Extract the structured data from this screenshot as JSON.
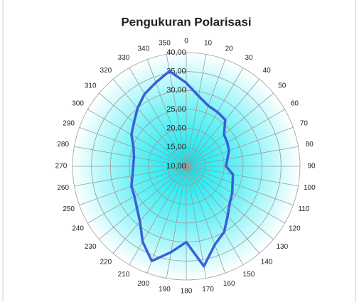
{
  "chart_data": {
    "type": "radar",
    "title": "Pengukuran Polarisasi",
    "categories": [
      "0",
      "10",
      "20",
      "30",
      "40",
      "50",
      "60",
      "70",
      "80",
      "90",
      "100",
      "110",
      "120",
      "130",
      "140",
      "150",
      "160",
      "170",
      "180",
      "190",
      "200",
      "210",
      "220",
      "230",
      "240",
      "250",
      "260",
      "270",
      "280",
      "290",
      "300",
      "310",
      "320",
      "330",
      "340",
      "350"
    ],
    "series": [
      {
        "name": "Polarisasi",
        "color": "#3a5fd8",
        "values": [
          32,
          28.8,
          27,
          26.5,
          26,
          23,
          22.5,
          22,
          21,
          20.5,
          22.5,
          23,
          24,
          25,
          27,
          30,
          32,
          36.8,
          30,
          33,
          36.6,
          33,
          29,
          27,
          25.8,
          25.4,
          24.4,
          24,
          24,
          24.8,
          26.7,
          28,
          30,
          32,
          33.5,
          35.5
        ]
      }
    ],
    "ylim": [
      10,
      40
    ],
    "yticks": [
      {
        "value": 10,
        "label": "10,00"
      },
      {
        "value": 15,
        "label": "15,00"
      },
      {
        "value": 20,
        "label": "20,00"
      },
      {
        "value": 25,
        "label": "25,00"
      },
      {
        "value": 30,
        "label": "30,00"
      },
      {
        "value": 35,
        "label": "35,00"
      },
      {
        "value": 40,
        "label": "40,00"
      }
    ],
    "grid": true
  }
}
